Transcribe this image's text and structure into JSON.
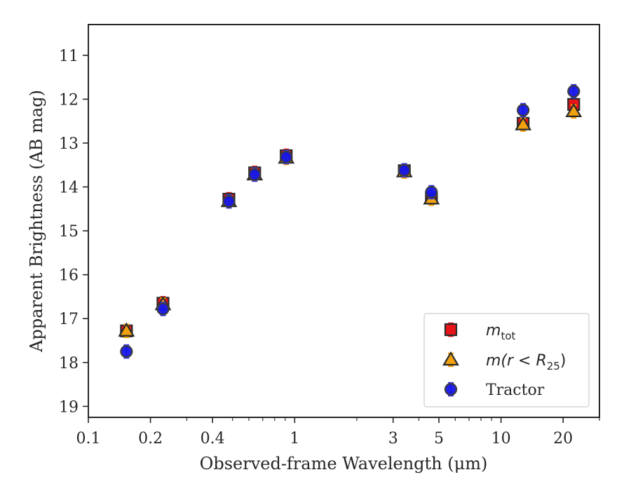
{
  "chart_data": {
    "type": "scatter",
    "xscale": "log",
    "yaxis_inverted": true,
    "xlim": [
      0.1,
      30
    ],
    "ylim": [
      10.3,
      19.25
    ],
    "xlabel": "Observed-frame Wavelength (μm)",
    "ylabel": "Apparent Brightness (AB mag)",
    "x_ticks": [
      {
        "value": 0.1,
        "label": "0.1"
      },
      {
        "value": 0.2,
        "label": "0.2"
      },
      {
        "value": 0.4,
        "label": "0.4"
      },
      {
        "value": 1,
        "label": "1"
      },
      {
        "value": 3,
        "label": "3"
      },
      {
        "value": 5,
        "label": "5"
      },
      {
        "value": 10,
        "label": "10"
      },
      {
        "value": 20,
        "label": "20"
      }
    ],
    "y_ticks": [
      {
        "value": 11,
        "label": "11"
      },
      {
        "value": 12,
        "label": "12"
      },
      {
        "value": 13,
        "label": "13"
      },
      {
        "value": 14,
        "label": "14"
      },
      {
        "value": 15,
        "label": "15"
      },
      {
        "value": 16,
        "label": "16"
      },
      {
        "value": 17,
        "label": "17"
      },
      {
        "value": 18,
        "label": "18"
      },
      {
        "value": 19,
        "label": "19"
      }
    ],
    "legend_position": "lower-right",
    "series": [
      {
        "name": "m_tot",
        "legend_main": "m",
        "legend_sub": "tot",
        "marker": "square",
        "color": "#e8141a",
        "error_color": "#e8141a",
        "points": [
          {
            "x": 0.153,
            "y": 17.28
          },
          {
            "x": 0.23,
            "y": 16.65
          },
          {
            "x": 0.48,
            "y": 14.28
          },
          {
            "x": 0.64,
            "y": 13.68
          },
          {
            "x": 0.91,
            "y": 13.29
          },
          {
            "x": 3.4,
            "y": 13.63
          },
          {
            "x": 4.6,
            "y": 14.25
          },
          {
            "x": 12.8,
            "y": 12.55
          },
          {
            "x": 22.5,
            "y": 12.12
          }
        ]
      },
      {
        "name": "m(r < R25)",
        "legend_main": "m(r < R",
        "legend_sub": "25",
        "legend_close": ")",
        "marker": "triangle",
        "color": "#f2a20f",
        "error_color": "#f2a20f",
        "points": [
          {
            "x": 0.153,
            "y": 17.28
          },
          {
            "x": 0.23,
            "y": 16.68
          },
          {
            "x": 0.48,
            "y": 14.33
          },
          {
            "x": 0.64,
            "y": 13.72
          },
          {
            "x": 0.91,
            "y": 13.34
          },
          {
            "x": 3.4,
            "y": 13.65
          },
          {
            "x": 4.6,
            "y": 14.27
          },
          {
            "x": 12.8,
            "y": 12.58
          },
          {
            "x": 22.5,
            "y": 12.28
          }
        ]
      },
      {
        "name": "Tractor",
        "legend_main": "Tractor",
        "marker": "circle",
        "color": "#1515e8",
        "error_color": "#3a3ae8",
        "points": [
          {
            "x": 0.153,
            "y": 17.75
          },
          {
            "x": 0.23,
            "y": 16.78
          },
          {
            "x": 0.48,
            "y": 14.33
          },
          {
            "x": 0.64,
            "y": 13.72
          },
          {
            "x": 0.91,
            "y": 13.32
          },
          {
            "x": 3.4,
            "y": 13.62
          },
          {
            "x": 4.6,
            "y": 14.12
          },
          {
            "x": 12.8,
            "y": 12.25
          },
          {
            "x": 22.5,
            "y": 11.82
          }
        ]
      }
    ]
  }
}
